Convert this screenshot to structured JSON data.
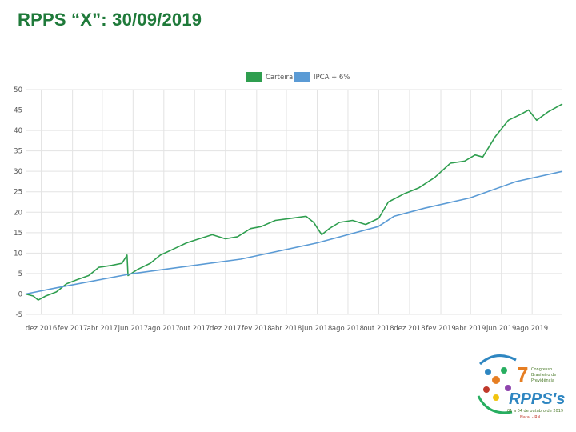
{
  "slide": {
    "title": "RPPS “X”: 30/09/2019"
  },
  "chart_data": {
    "type": "line",
    "title": "",
    "xlabel": "",
    "ylabel": "",
    "ylim": [
      -5,
      50
    ],
    "yticks": [
      -5,
      0,
      5,
      10,
      15,
      20,
      25,
      30,
      35,
      40,
      45,
      50
    ],
    "x_tick_labels": [
      "dez 2016",
      "fev 2017",
      "abr 2017",
      "jun 2017",
      "ago 2017",
      "out 2017",
      "dez 2017",
      "fev 2018",
      "abr 2018",
      "jun 2018",
      "ago 2018",
      "out 2018",
      "dez 2018",
      "fev 2019",
      "abr 2019",
      "jun 2019",
      "ago 2019"
    ],
    "x_range": [
      "2016-10-31",
      "2019-09-30"
    ],
    "grid": true,
    "legend_position": "top-center",
    "series": [
      {
        "name": "Carteira",
        "color": "#2f9e4f",
        "points": [
          [
            "2016-10-31",
            0
          ],
          [
            "2016-11-15",
            -0.5
          ],
          [
            "2016-11-25",
            -1.5
          ],
          [
            "2016-12-10",
            -0.5
          ],
          [
            "2016-12-31",
            0.5
          ],
          [
            "2017-01-20",
            2.5
          ],
          [
            "2017-02-10",
            3.5
          ],
          [
            "2017-03-05",
            4.5
          ],
          [
            "2017-03-25",
            6.5
          ],
          [
            "2017-04-20",
            7.0
          ],
          [
            "2017-05-10",
            7.5
          ],
          [
            "2017-05-20",
            9.5
          ],
          [
            "2017-05-22",
            4.5
          ],
          [
            "2017-06-10",
            6.0
          ],
          [
            "2017-07-05",
            7.5
          ],
          [
            "2017-07-25",
            9.5
          ],
          [
            "2017-08-20",
            11.0
          ],
          [
            "2017-09-15",
            12.5
          ],
          [
            "2017-10-10",
            13.5
          ],
          [
            "2017-11-05",
            14.5
          ],
          [
            "2017-12-01",
            13.5
          ],
          [
            "2017-12-25",
            14.0
          ],
          [
            "2018-01-20",
            16.0
          ],
          [
            "2018-02-10",
            16.5
          ],
          [
            "2018-03-10",
            18.0
          ],
          [
            "2018-04-10",
            18.5
          ],
          [
            "2018-05-10",
            19.0
          ],
          [
            "2018-05-25",
            17.5
          ],
          [
            "2018-06-10",
            14.5
          ],
          [
            "2018-06-25",
            16.0
          ],
          [
            "2018-07-15",
            17.5
          ],
          [
            "2018-08-10",
            18.0
          ],
          [
            "2018-09-05",
            17.0
          ],
          [
            "2018-10-01",
            18.5
          ],
          [
            "2018-10-20",
            22.5
          ],
          [
            "2018-11-20",
            24.5
          ],
          [
            "2018-12-20",
            26.0
          ],
          [
            "2019-01-20",
            28.5
          ],
          [
            "2019-02-20",
            32.0
          ],
          [
            "2019-03-20",
            32.5
          ],
          [
            "2019-04-10",
            34.0
          ],
          [
            "2019-04-25",
            33.5
          ],
          [
            "2019-05-20",
            38.5
          ],
          [
            "2019-06-15",
            42.5
          ],
          [
            "2019-07-10",
            44.0
          ],
          [
            "2019-07-25",
            45.0
          ],
          [
            "2019-08-10",
            42.5
          ],
          [
            "2019-09-01",
            44.5
          ],
          [
            "2019-09-30",
            46.5
          ]
        ]
      },
      {
        "name": "IPCA + 6%",
        "color": "#5b9bd5",
        "points": [
          [
            "2016-10-31",
            0
          ],
          [
            "2016-12-31",
            1.5
          ],
          [
            "2017-06-01",
            5.0
          ],
          [
            "2017-12-31",
            8.5
          ],
          [
            "2018-06-01",
            12.5
          ],
          [
            "2018-09-30",
            16.5
          ],
          [
            "2018-10-31",
            19.0
          ],
          [
            "2018-12-31",
            21.0
          ],
          [
            "2019-03-31",
            23.5
          ],
          [
            "2019-06-30",
            27.5
          ],
          [
            "2019-09-30",
            30.0
          ]
        ]
      }
    ]
  },
  "logo": {
    "number": "7",
    "name": "RPPS's",
    "line1": "Congresso",
    "line2": "Brasileiro de",
    "line3": "Previdência",
    "dates": "01 a 04 de outubro de 2019",
    "city": "Natal - RN"
  }
}
